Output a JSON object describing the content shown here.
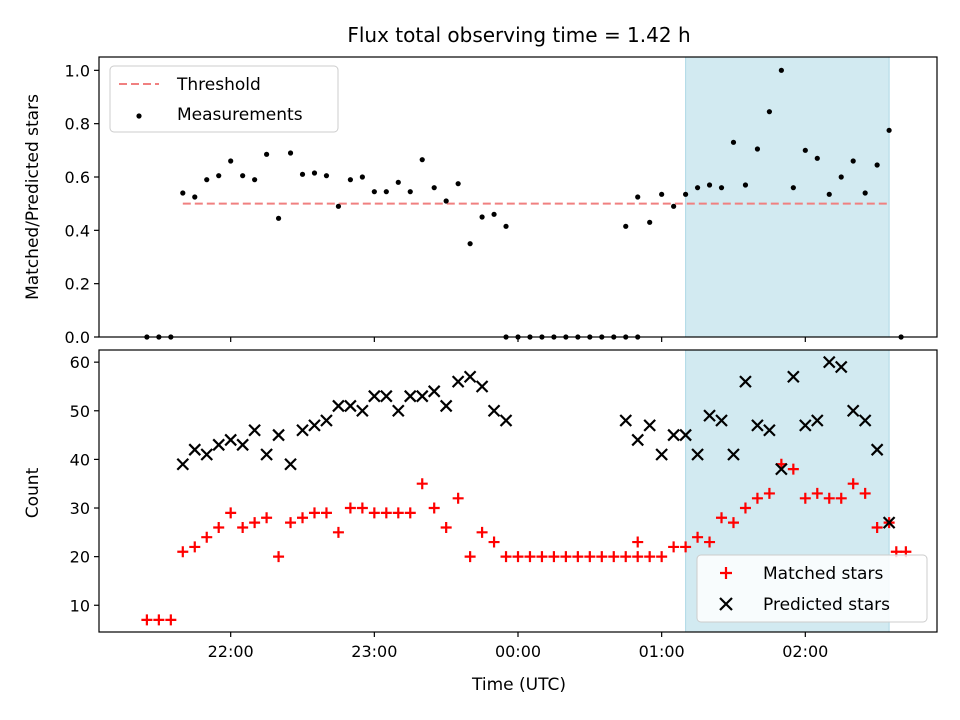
{
  "chart_data": [
    {
      "type": "scatter",
      "title": "Flux total observing time = 1.42 h",
      "xlabel": "",
      "ylabel": "Matched/Predicted stars",
      "ylim": [
        0,
        1.05
      ],
      "yticks": [
        0.0,
        0.2,
        0.4,
        0.6,
        0.8,
        1.0
      ],
      "ytick_labels": [
        "0.0",
        "0.2",
        "0.4",
        "0.6",
        "0.8",
        "1.0"
      ],
      "grid": false,
      "legend": "top-left",
      "highlight_span": [
        "01:10",
        "02:35"
      ],
      "threshold": {
        "name": "Threshold",
        "value": 0.5,
        "from": "21:40",
        "to": "02:35",
        "color": "#f08080"
      },
      "series": [
        {
          "name": "Measurements",
          "color": "#000000",
          "points": [
            [
              "21:25",
              0.0
            ],
            [
              "21:30",
              0.0
            ],
            [
              "21:35",
              0.0
            ],
            [
              "21:40",
              0.54
            ],
            [
              "21:45",
              0.525
            ],
            [
              "21:50",
              0.59
            ],
            [
              "21:55",
              0.605
            ],
            [
              "22:00",
              0.66
            ],
            [
              "22:05",
              0.605
            ],
            [
              "22:10",
              0.59
            ],
            [
              "22:15",
              0.685
            ],
            [
              "22:20",
              0.445
            ],
            [
              "22:25",
              0.69
            ],
            [
              "22:30",
              0.61
            ],
            [
              "22:35",
              0.615
            ],
            [
              "22:40",
              0.605
            ],
            [
              "22:45",
              0.49
            ],
            [
              "22:50",
              0.59
            ],
            [
              "22:55",
              0.6
            ],
            [
              "23:00",
              0.545
            ],
            [
              "23:05",
              0.545
            ],
            [
              "23:10",
              0.58
            ],
            [
              "23:15",
              0.545
            ],
            [
              "23:20",
              0.665
            ],
            [
              "23:25",
              0.56
            ],
            [
              "23:30",
              0.51
            ],
            [
              "23:35",
              0.575
            ],
            [
              "23:40",
              0.35
            ],
            [
              "23:45",
              0.45
            ],
            [
              "23:50",
              0.46
            ],
            [
              "23:55",
              0.415
            ],
            [
              "23:55",
              0.0
            ],
            [
              "00:00",
              0.0
            ],
            [
              "00:05",
              0.0
            ],
            [
              "00:10",
              0.0
            ],
            [
              "00:15",
              0.0
            ],
            [
              "00:20",
              0.0
            ],
            [
              "00:25",
              0.0
            ],
            [
              "00:30",
              0.0
            ],
            [
              "00:35",
              0.0
            ],
            [
              "00:40",
              0.0
            ],
            [
              "00:45",
              0.0
            ],
            [
              "00:50",
              0.0
            ],
            [
              "00:45",
              0.415
            ],
            [
              "00:50",
              0.525
            ],
            [
              "00:55",
              0.43
            ],
            [
              "01:00",
              0.535
            ],
            [
              "01:05",
              0.49
            ],
            [
              "01:10",
              0.535
            ],
            [
              "01:15",
              0.56
            ],
            [
              "01:20",
              0.57
            ],
            [
              "01:25",
              0.56
            ],
            [
              "01:30",
              0.73
            ],
            [
              "01:35",
              0.57
            ],
            [
              "01:40",
              0.705
            ],
            [
              "01:45",
              0.845
            ],
            [
              "01:50",
              1.0
            ],
            [
              "01:55",
              0.56
            ],
            [
              "02:00",
              0.7
            ],
            [
              "02:05",
              0.67
            ],
            [
              "02:10",
              0.535
            ],
            [
              "02:15",
              0.6
            ],
            [
              "02:20",
              0.66
            ],
            [
              "02:25",
              0.54
            ],
            [
              "02:30",
              0.645
            ],
            [
              "02:35",
              0.775
            ],
            [
              "02:40",
              0.0
            ]
          ]
        }
      ]
    },
    {
      "type": "scatter",
      "title": "",
      "xlabel": "Time (UTC)",
      "ylabel": "Count",
      "ylim": [
        4.5,
        62.5
      ],
      "yticks": [
        10,
        20,
        30,
        40,
        50,
        60
      ],
      "ytick_labels": [
        "10",
        "20",
        "30",
        "40",
        "50",
        "60"
      ],
      "xticks": [
        "22:00",
        "23:00",
        "00:00",
        "01:00",
        "02:00"
      ],
      "xrange": [
        "21:05",
        "02:55"
      ],
      "grid": false,
      "legend": "bottom-right",
      "highlight_span": [
        "01:10",
        "02:35"
      ],
      "series": [
        {
          "name": "Matched stars",
          "marker": "plus",
          "color": "#ff0000",
          "points": [
            [
              "21:25",
              7
            ],
            [
              "21:30",
              7
            ],
            [
              "21:35",
              7
            ],
            [
              "21:40",
              21
            ],
            [
              "21:45",
              22
            ],
            [
              "21:50",
              24
            ],
            [
              "21:55",
              26
            ],
            [
              "22:00",
              29
            ],
            [
              "22:05",
              26
            ],
            [
              "22:10",
              27
            ],
            [
              "22:15",
              28
            ],
            [
              "22:20",
              20
            ],
            [
              "22:25",
              27
            ],
            [
              "22:30",
              28
            ],
            [
              "22:35",
              29
            ],
            [
              "22:40",
              29
            ],
            [
              "22:45",
              25
            ],
            [
              "22:50",
              30
            ],
            [
              "22:55",
              30
            ],
            [
              "23:00",
              29
            ],
            [
              "23:05",
              29
            ],
            [
              "23:10",
              29
            ],
            [
              "23:15",
              29
            ],
            [
              "23:20",
              35
            ],
            [
              "23:25",
              30
            ],
            [
              "23:30",
              26
            ],
            [
              "23:35",
              32
            ],
            [
              "23:40",
              20
            ],
            [
              "23:45",
              25
            ],
            [
              "23:50",
              23
            ],
            [
              "23:55",
              20
            ],
            [
              "00:00",
              20
            ],
            [
              "00:05",
              20
            ],
            [
              "00:10",
              20
            ],
            [
              "00:15",
              20
            ],
            [
              "00:20",
              20
            ],
            [
              "00:25",
              20
            ],
            [
              "00:30",
              20
            ],
            [
              "00:35",
              20
            ],
            [
              "00:40",
              20
            ],
            [
              "00:45",
              20
            ],
            [
              "00:50",
              20
            ],
            [
              "00:55",
              20
            ],
            [
              "01:00",
              20
            ],
            [
              "00:50",
              23
            ],
            [
              "01:05",
              22
            ],
            [
              "01:10",
              22
            ],
            [
              "01:15",
              24
            ],
            [
              "01:20",
              23
            ],
            [
              "01:25",
              28
            ],
            [
              "01:30",
              27
            ],
            [
              "01:35",
              30
            ],
            [
              "01:40",
              32
            ],
            [
              "01:45",
              33
            ],
            [
              "01:50",
              39
            ],
            [
              "01:55",
              38
            ],
            [
              "02:00",
              32
            ],
            [
              "02:05",
              33
            ],
            [
              "02:10",
              32
            ],
            [
              "02:15",
              32
            ],
            [
              "02:20",
              35
            ],
            [
              "02:25",
              33
            ],
            [
              "02:30",
              26
            ],
            [
              "02:35",
              27
            ],
            [
              "02:38",
              21
            ],
            [
              "02:42",
              21
            ]
          ]
        },
        {
          "name": "Predicted stars",
          "marker": "x",
          "color": "#000000",
          "points": [
            [
              "21:40",
              39
            ],
            [
              "21:45",
              42
            ],
            [
              "21:50",
              41
            ],
            [
              "21:55",
              43
            ],
            [
              "22:00",
              44
            ],
            [
              "22:05",
              43
            ],
            [
              "22:10",
              46
            ],
            [
              "22:15",
              41
            ],
            [
              "22:20",
              45
            ],
            [
              "22:25",
              39
            ],
            [
              "22:30",
              46
            ],
            [
              "22:35",
              47
            ],
            [
              "22:40",
              48
            ],
            [
              "22:45",
              51
            ],
            [
              "22:50",
              51
            ],
            [
              "22:55",
              50
            ],
            [
              "23:00",
              53
            ],
            [
              "23:05",
              53
            ],
            [
              "23:10",
              50
            ],
            [
              "23:15",
              53
            ],
            [
              "23:20",
              53
            ],
            [
              "23:25",
              54
            ],
            [
              "23:30",
              51
            ],
            [
              "23:35",
              56
            ],
            [
              "23:40",
              57
            ],
            [
              "23:45",
              55
            ],
            [
              "23:50",
              50
            ],
            [
              "23:55",
              48
            ],
            [
              "00:45",
              48
            ],
            [
              "00:50",
              44
            ],
            [
              "00:55",
              47
            ],
            [
              "01:00",
              41
            ],
            [
              "01:05",
              45
            ],
            [
              "01:10",
              45
            ],
            [
              "01:15",
              41
            ],
            [
              "01:20",
              49
            ],
            [
              "01:25",
              48
            ],
            [
              "01:30",
              41
            ],
            [
              "01:35",
              56
            ],
            [
              "01:40",
              47
            ],
            [
              "01:45",
              46
            ],
            [
              "01:50",
              38
            ],
            [
              "01:55",
              57
            ],
            [
              "02:00",
              47
            ],
            [
              "02:05",
              48
            ],
            [
              "02:10",
              60
            ],
            [
              "02:15",
              59
            ],
            [
              "02:20",
              50
            ],
            [
              "02:25",
              48
            ],
            [
              "02:30",
              42
            ],
            [
              "02:35",
              27
            ]
          ]
        }
      ]
    }
  ]
}
